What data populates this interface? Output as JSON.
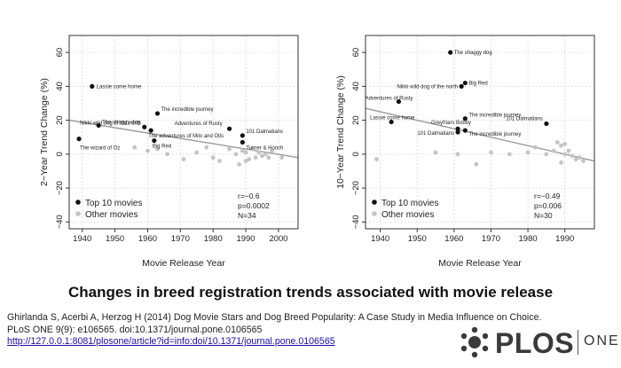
{
  "chart_data": [
    {
      "type": "scatter",
      "ylabel": "2−Year Trend Change (%)",
      "xlabel": "Movie Release Year",
      "xlim": [
        1936,
        2006
      ],
      "ylim": [
        -44,
        70
      ],
      "xticks": [
        1940,
        1950,
        1960,
        1970,
        1980,
        1990,
        2000
      ],
      "yticks": [
        -40,
        -20,
        0,
        20,
        40,
        60
      ],
      "grid": true,
      "series": [
        {
          "name": "Top 10 movies",
          "color": "#111111",
          "points": [
            {
              "x": 1943,
              "y": 40,
              "label": "Lassie come home"
            },
            {
              "x": 1945,
              "y": 17,
              "label": "The shaggy dog"
            },
            {
              "x": 1963,
              "y": 24,
              "label": "The incredible journey"
            },
            {
              "x": 1959,
              "y": 16,
              "label": "Nikki wild dog of the north"
            },
            {
              "x": 1961,
              "y": 14,
              "label": "The adventures of Milo and Otis"
            },
            {
              "x": 1985,
              "y": 15,
              "label": "Adventures of Rusty"
            },
            {
              "x": 1989,
              "y": 11,
              "label": "101 Dalmatians"
            },
            {
              "x": 1962,
              "y": 8,
              "label": "Big Red"
            },
            {
              "x": 1989,
              "y": 7,
              "label": "Turner & Hooch"
            },
            {
              "x": 1939,
              "y": 9,
              "label": "The wizard of Oz"
            }
          ]
        },
        {
          "name": "Other movies",
          "color": "#c4c4c4",
          "points": [
            {
              "x": 1956,
              "y": 4
            },
            {
              "x": 1960,
              "y": 2
            },
            {
              "x": 1963,
              "y": 3
            },
            {
              "x": 1966,
              "y": 0
            },
            {
              "x": 1971,
              "y": -3
            },
            {
              "x": 1975,
              "y": 1
            },
            {
              "x": 1978,
              "y": 4
            },
            {
              "x": 1980,
              "y": -2
            },
            {
              "x": 1982,
              "y": -4
            },
            {
              "x": 1985,
              "y": 3
            },
            {
              "x": 1987,
              "y": 0
            },
            {
              "x": 1988,
              "y": -6
            },
            {
              "x": 1990,
              "y": 1
            },
            {
              "x": 1991,
              "y": -3
            },
            {
              "x": 1992,
              "y": 3
            },
            {
              "x": 1993,
              "y": -2
            },
            {
              "x": 1994,
              "y": 1
            },
            {
              "x": 1995,
              "y": -1
            },
            {
              "x": 1996,
              "y": 0
            },
            {
              "x": 1997,
              "y": -2
            },
            {
              "x": 1998,
              "y": 2
            },
            {
              "x": 2001,
              "y": -2
            },
            {
              "x": 1989,
              "y": 2
            },
            {
              "x": 1990,
              "y": -4
            }
          ]
        }
      ],
      "trendline": {
        "x1": 1936,
        "y1": 20,
        "x2": 2006,
        "y2": -2
      },
      "legend": {
        "position": "bottom-left",
        "entries": [
          "Top 10 movies",
          "Other movies"
        ]
      },
      "stats": [
        "r=−0.6",
        "p=0.0002",
        "N=34"
      ]
    },
    {
      "type": "scatter",
      "ylabel": "10−Year Trend Change (%)",
      "xlabel": "Movie Release Year",
      "xlim": [
        1936,
        1998
      ],
      "ylim": [
        -44,
        70
      ],
      "xticks": [
        1940,
        1950,
        1960,
        1970,
        1980,
        1990
      ],
      "yticks": [
        -40,
        -20,
        0,
        20,
        40,
        60
      ],
      "grid": true,
      "series": [
        {
          "name": "Top 10 movies",
          "color": "#111111",
          "points": [
            {
              "x": 1959,
              "y": 60,
              "label": "The shaggy dog"
            },
            {
              "x": 1962,
              "y": 40,
              "label": "Nikki wild dog of the north"
            },
            {
              "x": 1963,
              "y": 42,
              "label": "Big Red"
            },
            {
              "x": 1945,
              "y": 31,
              "label": "Adventures of Rusty"
            },
            {
              "x": 1943,
              "y": 19,
              "label": "Lassie come home"
            },
            {
              "x": 1963,
              "y": 21,
              "label": "The incredible journey"
            },
            {
              "x": 1961,
              "y": 15,
              "label": "Greyfriars Bobby"
            },
            {
              "x": 1961,
              "y": 13,
              "label": "101 Dalmatians"
            },
            {
              "x": 1963,
              "y": 14,
              "label": "The incredible journey"
            },
            {
              "x": 1985,
              "y": 18,
              "label": "101 Dalmatians"
            }
          ]
        },
        {
          "name": "Other movies",
          "color": "#c4c4c4",
          "points": [
            {
              "x": 1939,
              "y": -3
            },
            {
              "x": 1955,
              "y": 1
            },
            {
              "x": 1961,
              "y": 0
            },
            {
              "x": 1966,
              "y": -6
            },
            {
              "x": 1970,
              "y": 1
            },
            {
              "x": 1975,
              "y": 0
            },
            {
              "x": 1980,
              "y": 1
            },
            {
              "x": 1982,
              "y": 4
            },
            {
              "x": 1985,
              "y": 0
            },
            {
              "x": 1987,
              "y": 2
            },
            {
              "x": 1988,
              "y": 7
            },
            {
              "x": 1989,
              "y": 5
            },
            {
              "x": 1989,
              "y": -5
            },
            {
              "x": 1990,
              "y": 0
            },
            {
              "x": 1991,
              "y": 2
            },
            {
              "x": 1992,
              "y": -1
            },
            {
              "x": 1993,
              "y": -3
            },
            {
              "x": 1994,
              "y": -2
            },
            {
              "x": 1995,
              "y": -4
            },
            {
              "x": 1990,
              "y": 6
            }
          ]
        }
      ],
      "trendline": {
        "x1": 1936,
        "y1": 27,
        "x2": 1998,
        "y2": -4
      },
      "legend": {
        "position": "bottom-left",
        "entries": [
          "Top 10 movies",
          "Other movies"
        ]
      },
      "stats": [
        "r=−0.49",
        "p=0.006",
        "N=30"
      ]
    }
  ],
  "headline": "Changes in breed registration trends associated with movie release",
  "citation": {
    "line1": "Ghirlanda S, Acerbi A, Herzog H (2014) Dog Movie Stars and Dog Breed Popularity: A Case Study in Media Influence  on Choice.",
    "line2": "PLoS ONE 9(9): e106565. doi:10.1371/journal.pone.0106565",
    "link": "http://127.0.0.1:8081/plosone/article?id=info:doi/10.1371/journal.pone.0106565"
  },
  "logo": {
    "brand": "PLOS",
    "journal": "ONE"
  }
}
